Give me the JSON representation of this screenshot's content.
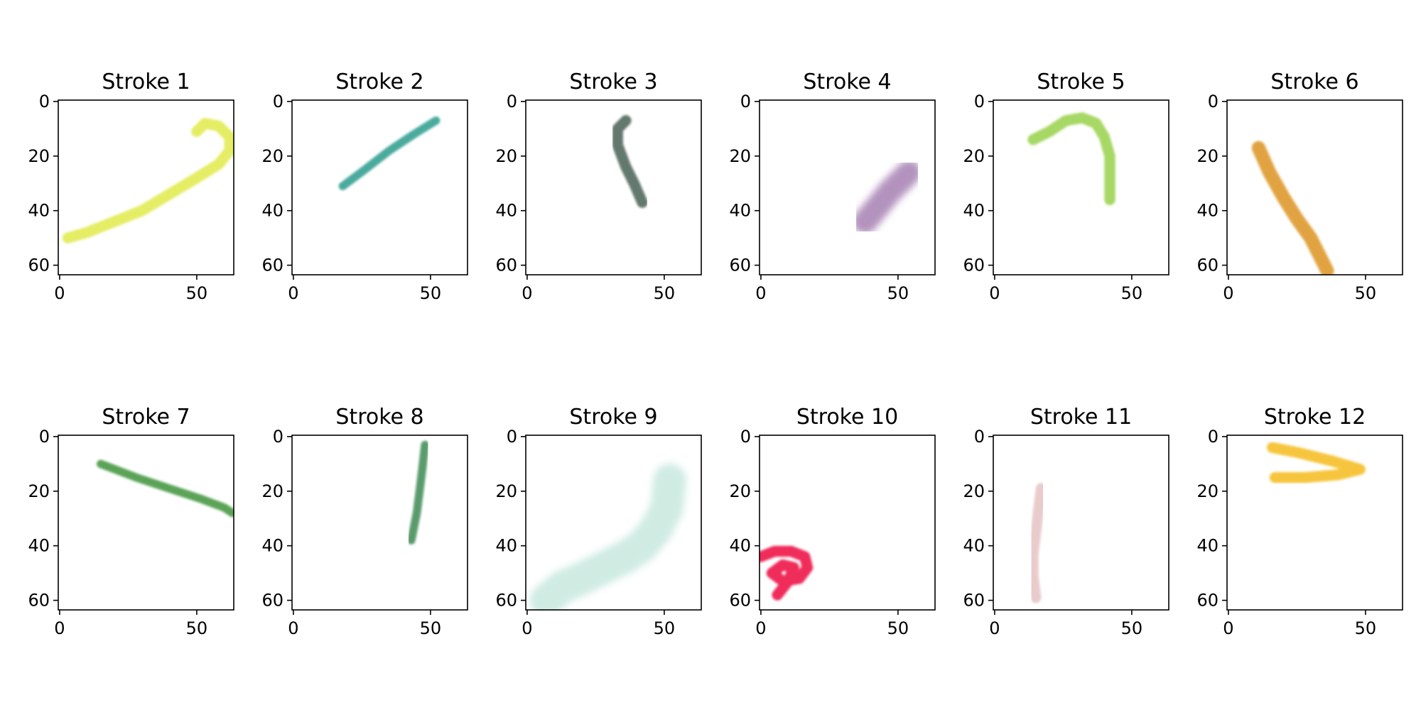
{
  "chart_data": [
    {
      "type": "image",
      "title": "Stroke 1",
      "color": "#e0ea4a",
      "xlim": [
        0,
        63
      ],
      "ylim": [
        63,
        0
      ],
      "xticks": [
        0,
        50
      ],
      "yticks": [
        0,
        20,
        40,
        60
      ],
      "stroke_width": 4,
      "opacity": 0.85,
      "points": [
        [
          3,
          50
        ],
        [
          10,
          48
        ],
        [
          20,
          44
        ],
        [
          30,
          40
        ],
        [
          40,
          34
        ],
        [
          50,
          28
        ],
        [
          58,
          23
        ],
        [
          62,
          18
        ],
        [
          62,
          13
        ],
        [
          58,
          9
        ],
        [
          53,
          8
        ],
        [
          50,
          11
        ]
      ]
    },
    {
      "type": "image",
      "title": "Stroke 2",
      "color": "#2a9c8c",
      "xlim": [
        0,
        63
      ],
      "ylim": [
        63,
        0
      ],
      "xticks": [
        0,
        50
      ],
      "yticks": [
        0,
        20,
        40,
        60
      ],
      "stroke_width": 3,
      "opacity": 0.85,
      "points": [
        [
          18,
          31
        ],
        [
          26,
          25
        ],
        [
          35,
          18
        ],
        [
          44,
          12
        ],
        [
          52,
          7
        ]
      ]
    },
    {
      "type": "image",
      "title": "Stroke 3",
      "color": "#536b5e",
      "xlim": [
        0,
        63
      ],
      "ylim": [
        63,
        0
      ],
      "xticks": [
        0,
        50
      ],
      "yticks": [
        0,
        20,
        40,
        60
      ],
      "stroke_width": 4,
      "opacity": 0.9,
      "points": [
        [
          36,
          7
        ],
        [
          33,
          10
        ],
        [
          33,
          16
        ],
        [
          36,
          24
        ],
        [
          39,
          30
        ],
        [
          42,
          37
        ]
      ]
    },
    {
      "type": "image",
      "title": "Stroke 4",
      "color": "#9a6fa8",
      "xlim": [
        0,
        63
      ],
      "ylim": [
        63,
        0
      ],
      "xticks": [
        0,
        50
      ],
      "yticks": [
        0,
        20,
        40,
        60
      ],
      "stroke_width": 9,
      "opacity": 0.75,
      "points": [
        [
          38,
          44
        ],
        [
          43,
          38
        ],
        [
          47,
          33
        ],
        [
          51,
          29
        ],
        [
          54,
          26
        ]
      ]
    },
    {
      "type": "image",
      "title": "Stroke 5",
      "color": "#98d14a",
      "xlim": [
        0,
        63
      ],
      "ylim": [
        63,
        0
      ],
      "xticks": [
        0,
        50
      ],
      "yticks": [
        0,
        20,
        40,
        60
      ],
      "stroke_width": 4,
      "opacity": 0.85,
      "points": [
        [
          14,
          14
        ],
        [
          20,
          11
        ],
        [
          26,
          7
        ],
        [
          32,
          6
        ],
        [
          37,
          8
        ],
        [
          40,
          13
        ],
        [
          42,
          20
        ],
        [
          42,
          28
        ],
        [
          42,
          36
        ]
      ]
    },
    {
      "type": "image",
      "title": "Stroke 6",
      "color": "#dc9420",
      "xlim": [
        0,
        63
      ],
      "ylim": [
        63,
        0
      ],
      "xticks": [
        0,
        50
      ],
      "yticks": [
        0,
        20,
        40,
        60
      ],
      "stroke_width": 5,
      "opacity": 0.85,
      "points": [
        [
          11,
          17
        ],
        [
          15,
          26
        ],
        [
          20,
          35
        ],
        [
          25,
          43
        ],
        [
          30,
          50
        ],
        [
          33,
          56
        ],
        [
          36,
          62
        ]
      ]
    },
    {
      "type": "image",
      "title": "Stroke 7",
      "color": "#4a9a44",
      "xlim": [
        0,
        63
      ],
      "ylim": [
        63,
        0
      ],
      "xticks": [
        0,
        50
      ],
      "yticks": [
        0,
        20,
        40,
        60
      ],
      "stroke_width": 3,
      "opacity": 0.9,
      "points": [
        [
          15,
          10
        ],
        [
          28,
          15
        ],
        [
          40,
          19
        ],
        [
          52,
          23
        ],
        [
          60,
          26
        ],
        [
          63,
          28
        ]
      ]
    },
    {
      "type": "image",
      "title": "Stroke 8",
      "color": "#3c8a52",
      "xlim": [
        0,
        63
      ],
      "ylim": [
        63,
        0
      ],
      "xticks": [
        0,
        50
      ],
      "yticks": [
        0,
        20,
        40,
        60
      ],
      "stroke_width": 3,
      "opacity": 0.85,
      "points": [
        [
          43,
          38
        ],
        [
          45,
          28
        ],
        [
          46,
          20
        ],
        [
          47,
          12
        ],
        [
          48,
          3
        ]
      ]
    },
    {
      "type": "image",
      "title": "Stroke 9",
      "color": "#a8dccc",
      "xlim": [
        0,
        63
      ],
      "ylim": [
        63,
        0
      ],
      "xticks": [
        0,
        50
      ],
      "yticks": [
        0,
        20,
        40,
        60
      ],
      "stroke_width": 12,
      "opacity": 0.55,
      "points": [
        [
          7,
          60
        ],
        [
          13,
          55
        ],
        [
          20,
          52
        ],
        [
          28,
          48
        ],
        [
          36,
          44
        ],
        [
          42,
          40
        ],
        [
          47,
          34
        ],
        [
          51,
          26
        ],
        [
          52,
          16
        ]
      ]
    },
    {
      "type": "image",
      "title": "Stroke 10",
      "color": "#ee1448",
      "xlim": [
        0,
        63
      ],
      "ylim": [
        63,
        0
      ],
      "xticks": [
        0,
        50
      ],
      "yticks": [
        0,
        20,
        40,
        60
      ],
      "stroke_width": 4,
      "opacity": 0.9,
      "points": [
        [
          0,
          44
        ],
        [
          5,
          42
        ],
        [
          11,
          42
        ],
        [
          16,
          44
        ],
        [
          17,
          48
        ],
        [
          14,
          52
        ],
        [
          8,
          53
        ],
        [
          4,
          50
        ],
        [
          8,
          47
        ],
        [
          12,
          48
        ],
        [
          10,
          53
        ],
        [
          6,
          58
        ]
      ]
    },
    {
      "type": "image",
      "title": "Stroke 11",
      "color": "#e6c2c4",
      "xlim": [
        0,
        63
      ],
      "ylim": [
        63,
        0
      ],
      "xticks": [
        0,
        50
      ],
      "yticks": [
        0,
        20,
        40,
        60
      ],
      "stroke_width": 4,
      "opacity": 0.85,
      "points": [
        [
          17,
          19
        ],
        [
          16,
          27
        ],
        [
          15,
          35
        ],
        [
          14,
          43
        ],
        [
          14,
          51
        ],
        [
          15,
          59
        ]
      ]
    },
    {
      "type": "image",
      "title": "Stroke 12",
      "color": "#f5bc1c",
      "xlim": [
        0,
        63
      ],
      "ylim": [
        63,
        0
      ],
      "xticks": [
        0,
        50
      ],
      "yticks": [
        0,
        20,
        40,
        60
      ],
      "stroke_width": 4,
      "opacity": 0.85,
      "points": [
        [
          16,
          4
        ],
        [
          26,
          6
        ],
        [
          38,
          9
        ],
        [
          48,
          12
        ],
        [
          40,
          14
        ],
        [
          28,
          15
        ],
        [
          17,
          15
        ]
      ]
    }
  ]
}
